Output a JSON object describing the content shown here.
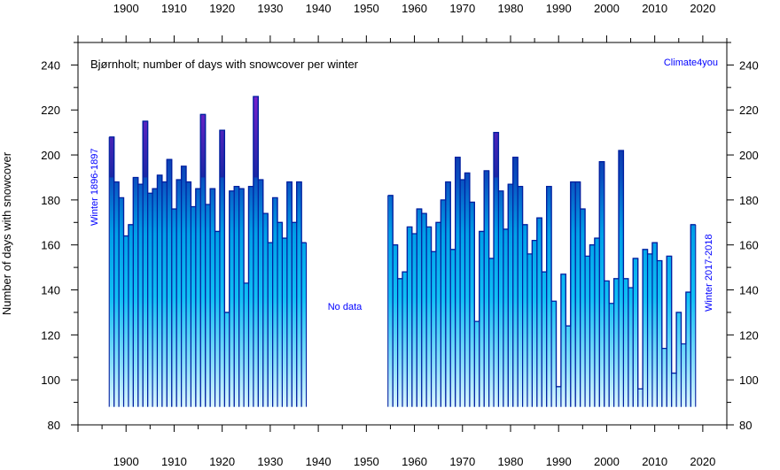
{
  "chart_data": {
    "type": "bar",
    "title": "Bjørnholt; number of days with snowcover per winter",
    "brand": "Climate4you",
    "ylabel": "Number of days with snowcover",
    "annotations": {
      "start_note": "Winter 1896-1897",
      "end_note": "Winter 2017-2018",
      "gap_note": "No data"
    },
    "xlim": [
      1890,
      2025
    ],
    "ylim": [
      80,
      250
    ],
    "x_ticks": [
      1900,
      1910,
      1920,
      1930,
      1940,
      1950,
      1960,
      1970,
      1980,
      1990,
      2000,
      2010,
      2020
    ],
    "y_ticks": [
      80,
      100,
      120,
      140,
      160,
      180,
      200,
      220,
      240
    ],
    "colors": {
      "bar_top_high": "#8020d0",
      "bar_top_low": "#1028a0",
      "bar_mid": "#00aaee",
      "bar_bottom": "#ffffff",
      "outline": "#0020a0"
    },
    "x": [
      1897,
      1898,
      1899,
      1900,
      1901,
      1902,
      1903,
      1904,
      1905,
      1906,
      1907,
      1908,
      1909,
      1910,
      1911,
      1912,
      1913,
      1914,
      1915,
      1916,
      1917,
      1918,
      1919,
      1920,
      1921,
      1922,
      1923,
      1924,
      1925,
      1926,
      1927,
      1928,
      1929,
      1930,
      1931,
      1932,
      1933,
      1934,
      1935,
      1936,
      1937,
      1955,
      1956,
      1957,
      1958,
      1959,
      1960,
      1961,
      1962,
      1963,
      1964,
      1965,
      1966,
      1967,
      1968,
      1969,
      1970,
      1971,
      1972,
      1973,
      1974,
      1975,
      1976,
      1977,
      1978,
      1979,
      1980,
      1981,
      1982,
      1983,
      1984,
      1985,
      1986,
      1987,
      1988,
      1989,
      1990,
      1991,
      1992,
      1993,
      1994,
      1995,
      1996,
      1997,
      1998,
      1999,
      2000,
      2001,
      2002,
      2003,
      2004,
      2005,
      2006,
      2007,
      2008,
      2009,
      2010,
      2011,
      2012,
      2013,
      2014,
      2015,
      2016,
      2017,
      2018
    ],
    "values": [
      208,
      188,
      181,
      164,
      169,
      190,
      187,
      215,
      183,
      185,
      191,
      188,
      198,
      176,
      189,
      195,
      188,
      177,
      185,
      218,
      178,
      185,
      166,
      211,
      130,
      184,
      186,
      185,
      143,
      186,
      226,
      189,
      174,
      161,
      181,
      170,
      163,
      188,
      170,
      188,
      161,
      182,
      160,
      145,
      148,
      168,
      165,
      176,
      174,
      168,
      157,
      170,
      180,
      188,
      158,
      199,
      189,
      192,
      179,
      126,
      166,
      193,
      154,
      210,
      184,
      167,
      187,
      199,
      186,
      169,
      156,
      162,
      172,
      148,
      186,
      135,
      97,
      147,
      124,
      188,
      188,
      176,
      155,
      160,
      163,
      197,
      144,
      134,
      145,
      202,
      145,
      141,
      154,
      96,
      158,
      156,
      161,
      153,
      114,
      155,
      103,
      130,
      116,
      139,
      169
    ]
  }
}
